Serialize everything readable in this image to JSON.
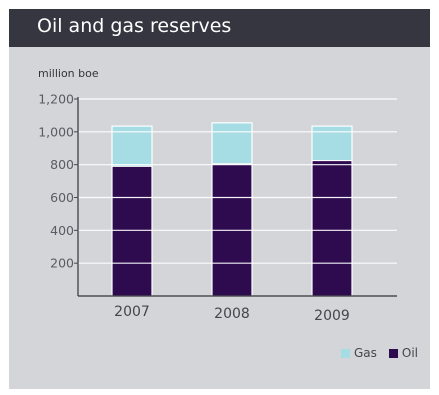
{
  "title": "Oil and gas reserves",
  "colors": {
    "header_bg": "#35363f",
    "panel_bg": "#d4d5d9",
    "oil": "#2e0a4f",
    "gas": "#a6dde4"
  },
  "chart_data": {
    "type": "bar",
    "stacked": true,
    "title": "Oil and gas reserves",
    "ylabel": "million boe",
    "xlabel": "",
    "categories": [
      "2007",
      "2008",
      "2009"
    ],
    "series": [
      {
        "name": "Oil",
        "values": [
          790,
          805,
          825
        ],
        "color": "#2e0a4f"
      },
      {
        "name": "Gas",
        "values": [
          245,
          250,
          210
        ],
        "color": "#a6dde4"
      }
    ],
    "ylim": [
      0,
      1200
    ],
    "yticks": [
      200,
      400,
      600,
      800,
      1000,
      1200
    ],
    "ytick_labels": [
      "200",
      "400",
      "600",
      "800",
      "1,000",
      "1,200"
    ],
    "grid": "horizontal white lines inside bars",
    "legend": {
      "position": "bottom-right",
      "entries": [
        "Gas",
        "Oil"
      ]
    }
  }
}
